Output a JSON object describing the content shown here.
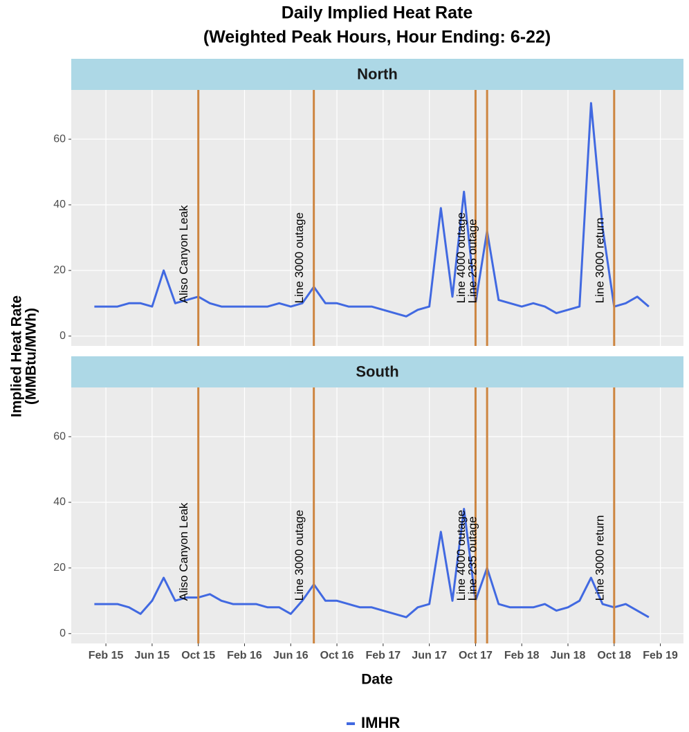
{
  "chart_data": {
    "type": "line",
    "title": "Daily Implied Heat Rate",
    "subtitle": "(Weighted Peak Hours, Hour Ending: 6-22)",
    "xlabel": "Date",
    "ylabel": [
      "Implied Heat Rate",
      "(MMBtu/MWh)"
    ],
    "series_name": "IMHR",
    "color": "#4169e1",
    "grid": true,
    "xlim": [
      "2014-11",
      "2019-04"
    ],
    "xticks": [
      {
        "value": "2015-02",
        "label": "Feb 15"
      },
      {
        "value": "2015-06",
        "label": "Jun 15"
      },
      {
        "value": "2015-10",
        "label": "Oct 15"
      },
      {
        "value": "2016-02",
        "label": "Feb 16"
      },
      {
        "value": "2016-06",
        "label": "Jun 16"
      },
      {
        "value": "2016-10",
        "label": "Oct 16"
      },
      {
        "value": "2017-02",
        "label": "Feb 17"
      },
      {
        "value": "2017-06",
        "label": "Jun 17"
      },
      {
        "value": "2017-10",
        "label": "Oct 17"
      },
      {
        "value": "2018-02",
        "label": "Feb 18"
      },
      {
        "value": "2018-06",
        "label": "Jun 18"
      },
      {
        "value": "2018-10",
        "label": "Oct 18"
      },
      {
        "value": "2019-02",
        "label": "Feb 19"
      }
    ],
    "ylim": [
      -3,
      75
    ],
    "yticks": [
      0,
      20,
      40,
      60
    ],
    "x": [
      "2015-01",
      "2015-02",
      "2015-03",
      "2015-04",
      "2015-05",
      "2015-06",
      "2015-07",
      "2015-08",
      "2015-09",
      "2015-10",
      "2015-11",
      "2015-12",
      "2016-01",
      "2016-02",
      "2016-03",
      "2016-04",
      "2016-05",
      "2016-06",
      "2016-07",
      "2016-08",
      "2016-09",
      "2016-10",
      "2016-11",
      "2016-12",
      "2017-01",
      "2017-02",
      "2017-03",
      "2017-04",
      "2017-05",
      "2017-06",
      "2017-07",
      "2017-08",
      "2017-09",
      "2017-10",
      "2017-11",
      "2017-12",
      "2018-01",
      "2018-02",
      "2018-03",
      "2018-04",
      "2018-05",
      "2018-06",
      "2018-07",
      "2018-08",
      "2018-09",
      "2018-10",
      "2018-11",
      "2018-12",
      "2019-01"
    ],
    "facets": [
      {
        "name": "North",
        "values": [
          9,
          9,
          9,
          10,
          10,
          9,
          20,
          10,
          11,
          12,
          10,
          9,
          9,
          9,
          9,
          9,
          10,
          9,
          10,
          15,
          10,
          10,
          9,
          9,
          9,
          8,
          7,
          6,
          8,
          9,
          39,
          12,
          44,
          10,
          32,
          11,
          10,
          9,
          10,
          9,
          7,
          8,
          9,
          71,
          33,
          9,
          10,
          12,
          9
        ]
      },
      {
        "name": "South",
        "values": [
          9,
          9,
          9,
          8,
          6,
          10,
          17,
          10,
          11,
          11,
          12,
          10,
          9,
          9,
          9,
          8,
          8,
          6,
          10,
          15,
          10,
          10,
          9,
          8,
          8,
          7,
          6,
          5,
          8,
          9,
          31,
          10,
          38,
          10,
          20,
          9,
          8,
          8,
          8,
          9,
          7,
          8,
          10,
          17,
          9,
          8,
          9,
          7,
          5
        ]
      }
    ],
    "event_color": "#cd8540",
    "events": [
      {
        "label": "Aliso Canyon Leak",
        "x": "2015-10"
      },
      {
        "label": "Line 3000 outage",
        "x": "2016-08"
      },
      {
        "label": "Line 4000 outage",
        "x": "2017-10"
      },
      {
        "label": "Line 235 outage",
        "x": "2017-11"
      },
      {
        "label": "Line 3000 return",
        "x": "2018-10"
      }
    ]
  }
}
